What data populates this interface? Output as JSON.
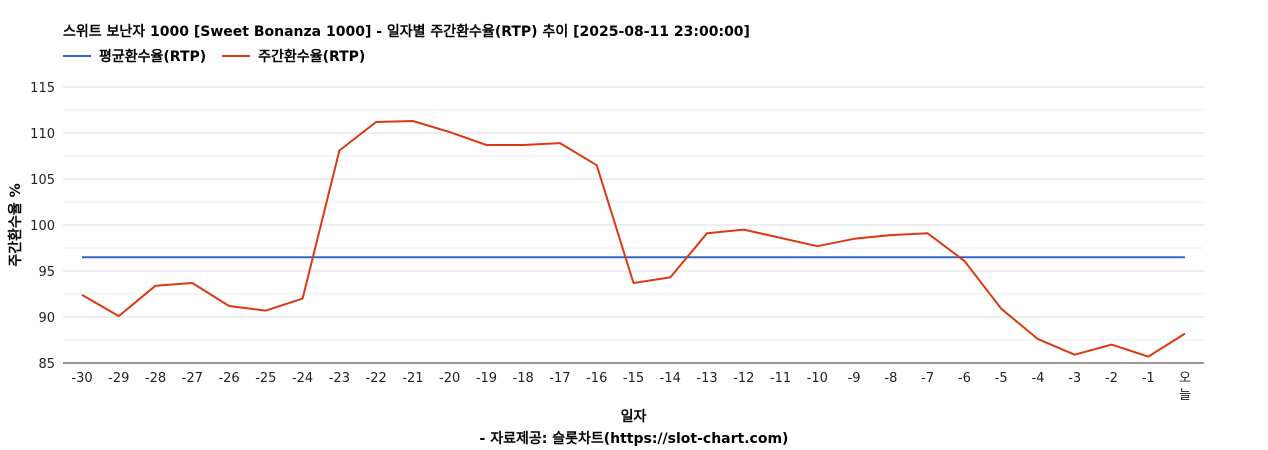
{
  "title": "스위트 보난자 1000 [Sweet Bonanza 1000] - 일자별 주간환수율(RTP) 추이 [2025-08-11 23:00:00]",
  "source": "- 자료제공: 슬롯차트(https://slot-chart.com)",
  "colors": {
    "average": "#3366cc",
    "weekly": "#dc3912",
    "grid": "#dddddd",
    "axis": "#333333"
  },
  "chart_data": {
    "type": "line",
    "xlabel": "일자",
    "ylabel": "주간환수율 %",
    "ylim": [
      85,
      115
    ],
    "yticks": [
      85,
      90,
      95,
      100,
      105,
      110,
      115
    ],
    "grid": true,
    "legend_position": "top-left",
    "categories": [
      "-30",
      "-29",
      "-28",
      "-27",
      "-26",
      "-25",
      "-24",
      "-23",
      "-22",
      "-21",
      "-20",
      "-19",
      "-18",
      "-17",
      "-16",
      "-15",
      "-14",
      "-13",
      "-12",
      "-11",
      "-10",
      "-9",
      "-8",
      "-7",
      "-6",
      "-5",
      "-4",
      "-3",
      "-2",
      "-1",
      "오늘"
    ],
    "series": [
      {
        "name": "평균환수율(RTP)",
        "values": [
          96.5,
          96.5,
          96.5,
          96.5,
          96.5,
          96.5,
          96.5,
          96.5,
          96.5,
          96.5,
          96.5,
          96.5,
          96.5,
          96.5,
          96.5,
          96.5,
          96.5,
          96.5,
          96.5,
          96.5,
          96.5,
          96.5,
          96.5,
          96.5,
          96.5,
          96.5,
          96.5,
          96.5,
          96.5,
          96.5,
          96.5
        ]
      },
      {
        "name": "주간환수율(RTP)",
        "values": [
          92.4,
          90.1,
          93.4,
          93.7,
          91.2,
          90.7,
          92.0,
          108.1,
          111.2,
          111.3,
          110.1,
          108.7,
          108.7,
          108.9,
          106.5,
          93.7,
          94.3,
          99.1,
          99.5,
          98.6,
          97.7,
          98.5,
          98.9,
          99.1,
          96.1,
          90.9,
          87.6,
          85.9,
          87.0,
          85.7,
          88.2
        ]
      }
    ]
  }
}
